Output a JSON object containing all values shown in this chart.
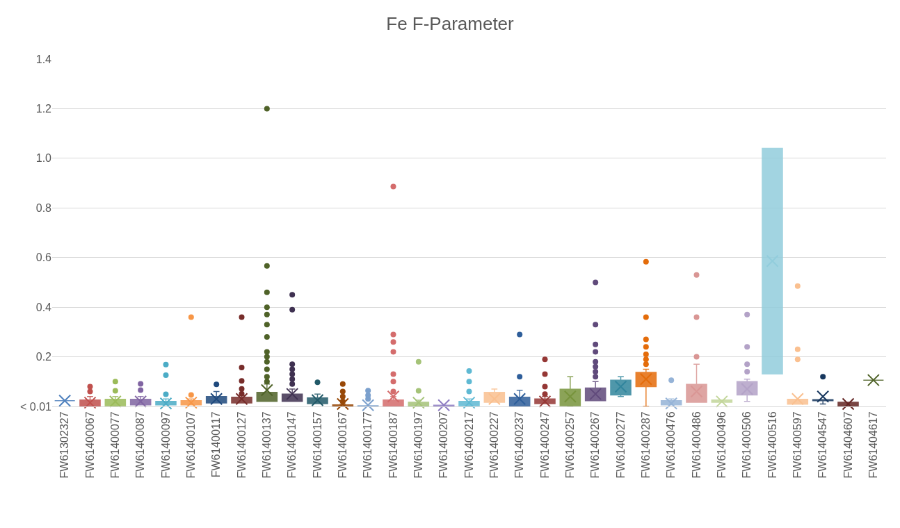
{
  "chart_data": {
    "type": "box",
    "title": "Fe F-Parameter",
    "categories": [
      "FW61302327",
      "FW61400067",
      "FW61400077",
      "FW61400087",
      "FW61400097",
      "FW61400107",
      "FW61400117",
      "FW61400127",
      "FW61400137",
      "FW61400147",
      "FW61400157",
      "FW61400167",
      "FW61400177",
      "FW61400187",
      "FW61400197",
      "FW61400207",
      "FW61400217",
      "FW61400227",
      "FW61400237",
      "FW61400247",
      "FW61400257",
      "FW61400267",
      "FW61400277",
      "FW61400287",
      "FW61400476",
      "FW61400486",
      "FW61400496",
      "FW61400506",
      "FW61400516",
      "FW61400597",
      "FW61404547",
      "FW61404607",
      "FW61404617"
    ],
    "colors": [
      "#4f81bd",
      "#c0504d",
      "#9bbb59",
      "#8064a2",
      "#4bacc6",
      "#f79646",
      "#1f497d",
      "#772c2a",
      "#4f6228",
      "#3f3151",
      "#215968",
      "#984807",
      "#7ba0cd",
      "#d46c6c",
      "#a5c378",
      "#8e7cc3",
      "#5fb9d3",
      "#fac090",
      "#2e5e9a",
      "#953735",
      "#77933c",
      "#604a7b",
      "#31859c",
      "#e46c0a",
      "#95b3d7",
      "#d99694",
      "#c3d69b",
      "#b3a2c7",
      "#92cddc",
      "#fac090",
      "#17375e",
      "#632523",
      "#4f6228"
    ],
    "boxes": [
      {
        "low": 0.023,
        "q1": 0.023,
        "median": 0.023,
        "q3": 0.023,
        "high": 0.023,
        "mean": 0.023
      },
      {
        "low": 0.0,
        "q1": 0.0,
        "median": 0.01,
        "q3": 0.026,
        "high": 0.04,
        "mean": 0.015,
        "outliers": [
          0.06,
          0.08
        ]
      },
      {
        "low": 0.0,
        "q1": 0.003,
        "median": 0.015,
        "q3": 0.029,
        "high": 0.04,
        "mean": 0.02,
        "outliers": [
          0.063,
          0.1
        ]
      },
      {
        "low": 0.006,
        "q1": 0.006,
        "median": 0.015,
        "q3": 0.029,
        "high": 0.04,
        "mean": 0.02,
        "outliers": [
          0.066,
          0.091
        ]
      },
      {
        "low": 0.006,
        "q1": 0.006,
        "median": 0.01,
        "q3": 0.02,
        "high": 0.03,
        "mean": 0.012,
        "outliers": [
          0.049,
          0.126,
          0.169
        ]
      },
      {
        "low": 0.006,
        "q1": 0.006,
        "median": 0.01,
        "q3": 0.023,
        "high": 0.03,
        "mean": 0.015,
        "outliers": [
          0.046,
          0.36
        ]
      },
      {
        "low": 0.014,
        "q1": 0.014,
        "median": 0.025,
        "q3": 0.04,
        "high": 0.06,
        "mean": 0.03,
        "outliers": [
          0.089
        ]
      },
      {
        "low": 0.014,
        "q1": 0.014,
        "median": 0.02,
        "q3": 0.037,
        "high": 0.045,
        "mean": 0.03,
        "outliers": [
          0.051,
          0.071,
          0.103,
          0.157,
          0.36
        ]
      },
      {
        "low": 0.02,
        "q1": 0.02,
        "median": 0.034,
        "q3": 0.057,
        "high": 0.09,
        "mean": 0.066,
        "outliers": [
          0.1,
          0.12,
          0.15,
          0.18,
          0.2,
          0.22,
          0.28,
          0.33,
          0.37,
          0.4,
          0.46,
          0.566,
          1.2
        ]
      },
      {
        "low": 0.02,
        "q1": 0.02,
        "median": 0.035,
        "q3": 0.05,
        "high": 0.07,
        "mean": 0.05,
        "outliers": [
          0.09,
          0.11,
          0.13,
          0.15,
          0.17,
          0.39,
          0.45
        ]
      },
      {
        "low": 0.011,
        "q1": 0.011,
        "median": 0.02,
        "q3": 0.034,
        "high": 0.05,
        "mean": 0.025,
        "outliers": [
          0.097
        ]
      },
      {
        "low": 0.0,
        "q1": 0.0,
        "median": 0.002,
        "q3": 0.006,
        "high": 0.01,
        "mean": 0.01,
        "outliers": [
          0.02,
          0.04,
          0.06,
          0.09
        ]
      },
      {
        "low": 0.0,
        "q1": 0.0,
        "median": 0.001,
        "q3": 0.003,
        "high": 0.003,
        "mean": 0.005,
        "outliers": [
          0.03,
          0.045,
          0.064
        ]
      },
      {
        "low": 0.0,
        "q1": 0.0,
        "median": 0.01,
        "q3": 0.026,
        "high": 0.04,
        "mean": 0.04,
        "outliers": [
          0.06,
          0.1,
          0.13,
          0.22,
          0.26,
          0.29,
          0.886
        ]
      },
      {
        "low": 0.0,
        "q1": 0.0,
        "median": 0.006,
        "q3": 0.017,
        "high": 0.025,
        "mean": 0.015,
        "outliers": [
          0.063,
          0.18
        ]
      },
      {
        "low": 0.0,
        "q1": 0.0,
        "median": 0.002,
        "q3": 0.005,
        "high": 0.005,
        "mean": 0.005
      },
      {
        "low": 0.0,
        "q1": 0.003,
        "median": 0.01,
        "q3": 0.02,
        "high": 0.03,
        "mean": 0.015,
        "outliers": [
          0.06,
          0.1,
          0.143
        ]
      },
      {
        "low": 0.017,
        "q1": 0.017,
        "median": 0.04,
        "q3": 0.057,
        "high": 0.07,
        "mean": 0.03
      },
      {
        "low": 0.0,
        "q1": 0.0,
        "median": 0.02,
        "q3": 0.037,
        "high": 0.065,
        "mean": 0.03,
        "outliers": [
          0.12,
          0.29
        ]
      },
      {
        "low": 0.011,
        "q1": 0.011,
        "median": 0.015,
        "q3": 0.03,
        "high": 0.04,
        "mean": 0.02,
        "outliers": [
          0.05,
          0.08,
          0.13,
          0.19
        ]
      },
      {
        "low": 0.0,
        "q1": 0.003,
        "median": 0.02,
        "q3": 0.069,
        "high": 0.12,
        "mean": 0.04
      },
      {
        "low": 0.023,
        "q1": 0.023,
        "median": 0.045,
        "q3": 0.074,
        "high": 0.1,
        "mean": 0.05,
        "outliers": [
          0.12,
          0.14,
          0.16,
          0.18,
          0.22,
          0.25,
          0.33,
          0.5
        ]
      },
      {
        "low": 0.04,
        "q1": 0.046,
        "median": 0.08,
        "q3": 0.106,
        "high": 0.12,
        "mean": 0.08
      },
      {
        "low": 0.0,
        "q1": 0.08,
        "median": 0.11,
        "q3": 0.137,
        "high": 0.15,
        "mean": 0.11,
        "outliers": [
          0.17,
          0.19,
          0.21,
          0.24,
          0.27,
          0.36,
          0.583
        ]
      },
      {
        "low": 0.006,
        "q1": 0.006,
        "median": 0.01,
        "q3": 0.023,
        "high": 0.03,
        "mean": 0.012,
        "outliers": [
          0.106
        ]
      },
      {
        "low": 0.017,
        "q1": 0.017,
        "median": 0.03,
        "q3": 0.089,
        "high": 0.17,
        "mean": 0.06,
        "outliers": [
          0.2,
          0.36,
          0.53
        ]
      },
      {
        "low": 0.017,
        "q1": 0.017,
        "median": 0.02,
        "q3": 0.026,
        "high": 0.026,
        "mean": 0.02
      },
      {
        "low": 0.02,
        "q1": 0.046,
        "median": 0.07,
        "q3": 0.1,
        "high": 0.11,
        "mean": 0.07,
        "outliers": [
          0.14,
          0.17,
          0.24,
          0.37
        ]
      },
      {
        "low": 0.131,
        "q1": 0.131,
        "median": 0.586,
        "q3": 1.04,
        "high": 1.04,
        "mean": 0.586
      },
      {
        "low": 0.009,
        "q1": 0.009,
        "median": 0.02,
        "q3": 0.029,
        "high": 0.029,
        "mean": 0.03,
        "outliers": [
          0.19,
          0.23,
          0.485
        ]
      },
      {
        "low": 0.01,
        "q1": 0.023,
        "median": 0.025,
        "q3": 0.027,
        "high": 0.027,
        "mean": 0.04,
        "outliers": [
          0.12
        ]
      },
      {
        "low": 0.0,
        "q1": 0.0,
        "median": 0.005,
        "q3": 0.017,
        "high": 0.017,
        "mean": 0.01
      },
      {
        "low": 0.106,
        "q1": 0.106,
        "median": 0.106,
        "q3": 0.106,
        "high": 0.106,
        "mean": 0.106
      }
    ],
    "ylim": [
      0,
      1.4
    ],
    "yticks": [
      {
        "value": 0,
        "label": "< 0.01"
      },
      0.2,
      0.4,
      0.6,
      0.8,
      {
        "value": 1.0,
        "label": "1.0"
      },
      1.2,
      1.4
    ],
    "grid": "y"
  }
}
